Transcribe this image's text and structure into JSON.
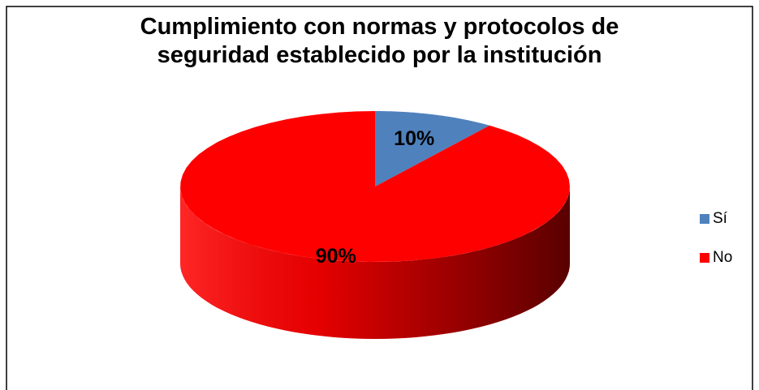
{
  "chart_data": {
    "type": "pie",
    "title": "Cumplimiento con normas y protocolos de seguridad establecido por la institución",
    "categories": [
      "Sí",
      "No"
    ],
    "values": [
      10,
      90
    ],
    "value_labels": [
      "10%",
      "90%"
    ],
    "colors": [
      "#4f81bd",
      "#ff0000"
    ],
    "legend": "right"
  }
}
